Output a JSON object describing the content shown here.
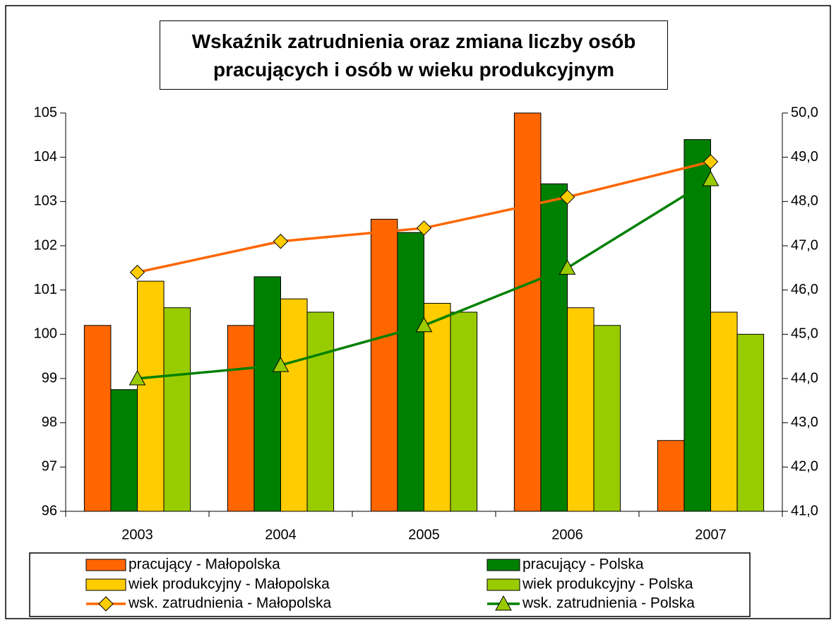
{
  "chart_data": {
    "type": "bar",
    "title": "Wskaźnik zatrudnienia oraz zmiana liczby osób pracujących i osób w wieku produkcyjnym",
    "categories": [
      "2003",
      "2004",
      "2005",
      "2006",
      "2007"
    ],
    "series": [
      {
        "name": "pracujący - Małopolska",
        "type": "bar",
        "color": "#ff6600",
        "values": [
          100.2,
          100.2,
          102.6,
          105.0,
          97.6
        ]
      },
      {
        "name": "pracujący - Polska",
        "type": "bar",
        "color": "#008000",
        "values": [
          98.75,
          101.3,
          102.3,
          103.4,
          104.4
        ]
      },
      {
        "name": "wiek produkcyjny - Małopolska",
        "type": "bar",
        "color": "#ffcc00",
        "values": [
          101.2,
          100.8,
          100.7,
          100.6,
          100.5
        ]
      },
      {
        "name": "wiek produkcyjny - Polska",
        "type": "bar",
        "color": "#99cc00",
        "values": [
          100.6,
          100.5,
          100.5,
          100.2,
          100.0
        ]
      },
      {
        "name": "wsk. zatrudnienia - Małopolska",
        "type": "line",
        "axis": "y2",
        "color": "#ff6600",
        "marker": "diamond",
        "marker_color": "#ffcc00",
        "values": [
          46.4,
          47.1,
          47.4,
          48.1,
          48.9
        ]
      },
      {
        "name": "wsk. zatrudnienia - Polska",
        "type": "line",
        "axis": "y2",
        "color": "#008000",
        "marker": "triangle",
        "marker_color": "#99cc00",
        "values": [
          44.0,
          44.3,
          45.2,
          46.5,
          48.5
        ]
      }
    ],
    "ylim": [
      96,
      105
    ],
    "yticks": [
      96,
      97,
      98,
      99,
      100,
      101,
      102,
      103,
      104,
      105
    ],
    "y2lim": [
      41,
      50
    ],
    "y2ticks": [
      {
        "value": 41,
        "label": "41,0"
      },
      {
        "value": 42,
        "label": "42,0"
      },
      {
        "value": 43,
        "label": "43,0"
      },
      {
        "value": 44,
        "label": "44,0"
      },
      {
        "value": 45,
        "label": "45,0"
      },
      {
        "value": 46,
        "label": "46,0"
      },
      {
        "value": 47,
        "label": "47,0"
      },
      {
        "value": 48,
        "label": "48,0"
      },
      {
        "value": 49,
        "label": "49,0"
      },
      {
        "value": 50,
        "label": "50,0"
      }
    ],
    "grid": false,
    "legend": "bottom"
  }
}
